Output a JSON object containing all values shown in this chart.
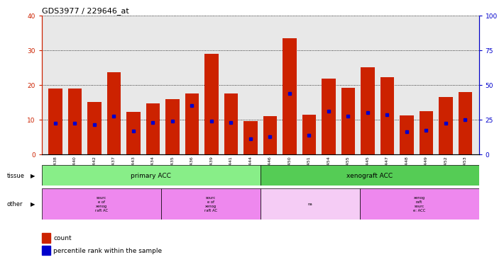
{
  "title": "GDS3977 / 229646_at",
  "samples": [
    "GSM718438",
    "GSM718440",
    "GSM718442",
    "GSM718437",
    "GSM718443",
    "GSM718434",
    "GSM718435",
    "GSM718436",
    "GSM718439",
    "GSM718441",
    "GSM718444",
    "GSM718446",
    "GSM718450",
    "GSM718451",
    "GSM718454",
    "GSM718455",
    "GSM718445",
    "GSM718447",
    "GSM718448",
    "GSM718449",
    "GSM718452",
    "GSM718453"
  ],
  "counts": [
    19.0,
    19.0,
    15.2,
    23.7,
    12.3,
    14.7,
    15.9,
    17.5,
    29.0,
    17.5,
    9.5,
    11.1,
    33.5,
    11.5,
    21.9,
    19.1,
    25.2,
    22.2,
    11.2,
    12.5,
    16.6,
    18.0
  ],
  "percentile_ranks": [
    9.0,
    9.0,
    8.5,
    11.0,
    6.8,
    9.2,
    9.5,
    14.0,
    9.5,
    9.2,
    4.5,
    5.0,
    17.5,
    5.5,
    12.5,
    11.0,
    12.0,
    11.5,
    6.5,
    7.0,
    9.0,
    10.0
  ],
  "bar_color": "#cc2200",
  "marker_color": "#0000cc",
  "ylim_left": [
    0,
    40
  ],
  "ylim_right": [
    0,
    100
  ],
  "yticks_left": [
    0,
    10,
    20,
    30,
    40
  ],
  "yticks_right": [
    0,
    25,
    50,
    75,
    100
  ],
  "background_color": "#e8e8e8",
  "left_axis_color": "#cc2200",
  "right_axis_color": "#0000cc",
  "tissue_primary_color": "#88ee88",
  "tissue_xenograft_color": "#55cc55",
  "other_pink_color": "#ee88ee",
  "other_light_pink": "#f5ccf5"
}
